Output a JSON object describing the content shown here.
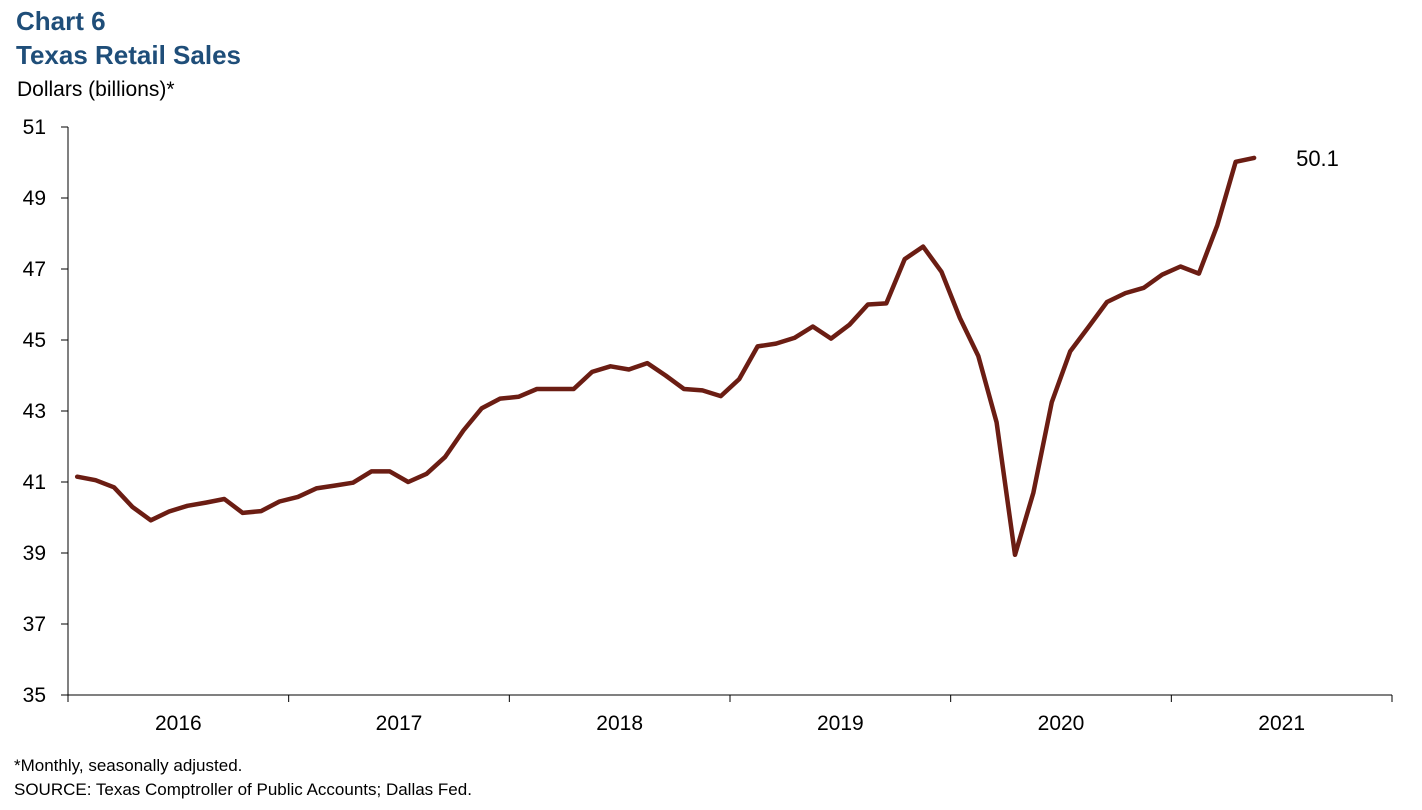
{
  "header": {
    "chart_label": "Chart 6",
    "title": "Texas Retail Sales",
    "y_unit": "Dollars (billions)*"
  },
  "notes": {
    "footnote": "*Monthly, seasonally adjusted.",
    "source": "SOURCE: Texas Comptroller of Public Accounts; Dallas Fed."
  },
  "colors": {
    "title": "#1f4e79",
    "line": "#6b1d13",
    "axis": "#000000"
  },
  "chart_data": {
    "type": "line",
    "title": "Texas Retail Sales",
    "ylabel": "Dollars (billions)*",
    "xlabel": "",
    "ylim": [
      35,
      51
    ],
    "yticks": [
      35,
      37,
      39,
      41,
      43,
      45,
      47,
      49,
      51
    ],
    "xticks": [
      "2016",
      "2017",
      "2018",
      "2019",
      "2020",
      "2021"
    ],
    "x_start": "2016-01",
    "grid": false,
    "end_label": "50.1",
    "series": [
      {
        "values": [
          41.15,
          41.05,
          40.85,
          40.3,
          39.92,
          40.17,
          40.33,
          40.42,
          40.52,
          40.13,
          40.18,
          40.45,
          40.58,
          40.82,
          40.9,
          40.98,
          41.3,
          41.3,
          41.0,
          41.23,
          41.7,
          42.45,
          43.08,
          43.35,
          43.4,
          43.62,
          43.62,
          43.62,
          44.1,
          44.26,
          44.17,
          44.35,
          44.0,
          43.62,
          43.58,
          43.42,
          43.9,
          44.82,
          44.9,
          45.06,
          45.38,
          45.04,
          45.43,
          46.0,
          46.03,
          47.28,
          47.63,
          46.92,
          45.62,
          44.55,
          42.68,
          38.95,
          40.7,
          43.25,
          44.68,
          45.37,
          46.07,
          46.32,
          46.47,
          46.84,
          47.07,
          46.87,
          48.23,
          50.02,
          50.13
        ]
      }
    ]
  }
}
